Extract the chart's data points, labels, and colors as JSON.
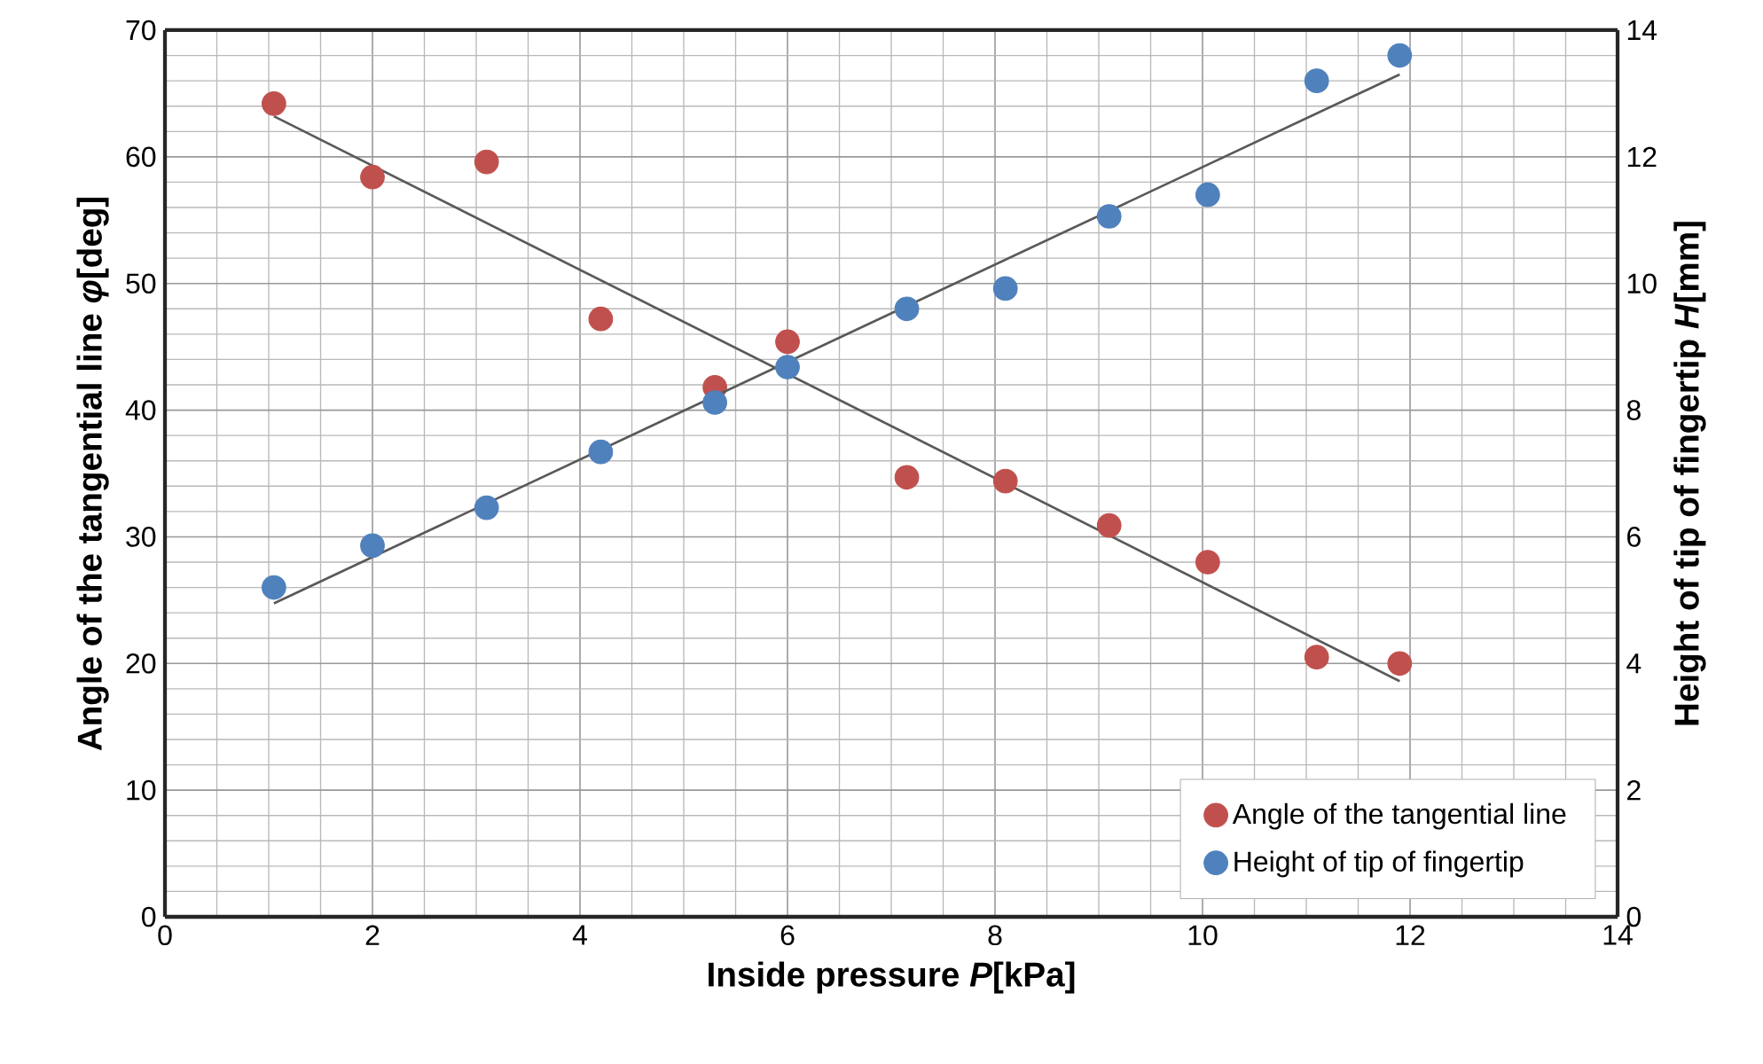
{
  "chart_data": {
    "type": "scatter",
    "xlabel": "Inside pressure *P*[kPa]",
    "ylabel": "Angle of the tangential line *φ*[deg]",
    "y2label": "Height of tip of fingertip *H*[mm]",
    "series": [
      {
        "name": "Angle of the tangential line",
        "color": "#c0504d",
        "x": [
          1.05,
          2.0,
          3.1,
          4.2,
          5.3,
          6.0,
          7.15,
          8.1,
          9.1,
          10.05,
          11.1,
          11.9
        ],
        "values": [
          64.2,
          58.4,
          59.6,
          47.2,
          41.8,
          45.4,
          34.7,
          34.4,
          30.9,
          28.0,
          20.5,
          20.0
        ]
      },
      {
        "name": "Height of tip of fingertip",
        "color": "#4f81bd",
        "axis": "y2",
        "x": [
          1.05,
          2.0,
          3.1,
          4.2,
          5.3,
          6.0,
          7.15,
          8.1,
          9.1,
          10.05,
          11.1,
          11.9
        ],
        "values": [
          5.2,
          5.86,
          6.46,
          7.34,
          8.12,
          8.68,
          9.6,
          9.92,
          11.06,
          11.4,
          13.2,
          13.6
        ]
      },
      {
        "type": "line",
        "marker": "none",
        "color": "#595959",
        "x": [
          1.05,
          11.9
        ],
        "values": [
          63.2,
          18.6
        ]
      },
      {
        "type": "line",
        "marker": "none",
        "color": "#595959",
        "axis": "y2",
        "x": [
          1.05,
          11.9
        ],
        "values": [
          4.95,
          13.3
        ]
      }
    ],
    "xlim": [
      0,
      14
    ],
    "xticks": [
      0,
      2,
      4,
      6,
      8,
      10,
      12,
      14
    ],
    "ylim": [
      0,
      70
    ],
    "yticks": [
      0,
      10,
      20,
      30,
      40,
      50,
      60,
      70
    ],
    "y2lim": [
      0,
      14
    ],
    "y2ticks": [
      0,
      2,
      4,
      6,
      8,
      10,
      12,
      14
    ],
    "grid": true,
    "legend": "bottom right",
    "marker": "circle",
    "line_style": "solid"
  }
}
